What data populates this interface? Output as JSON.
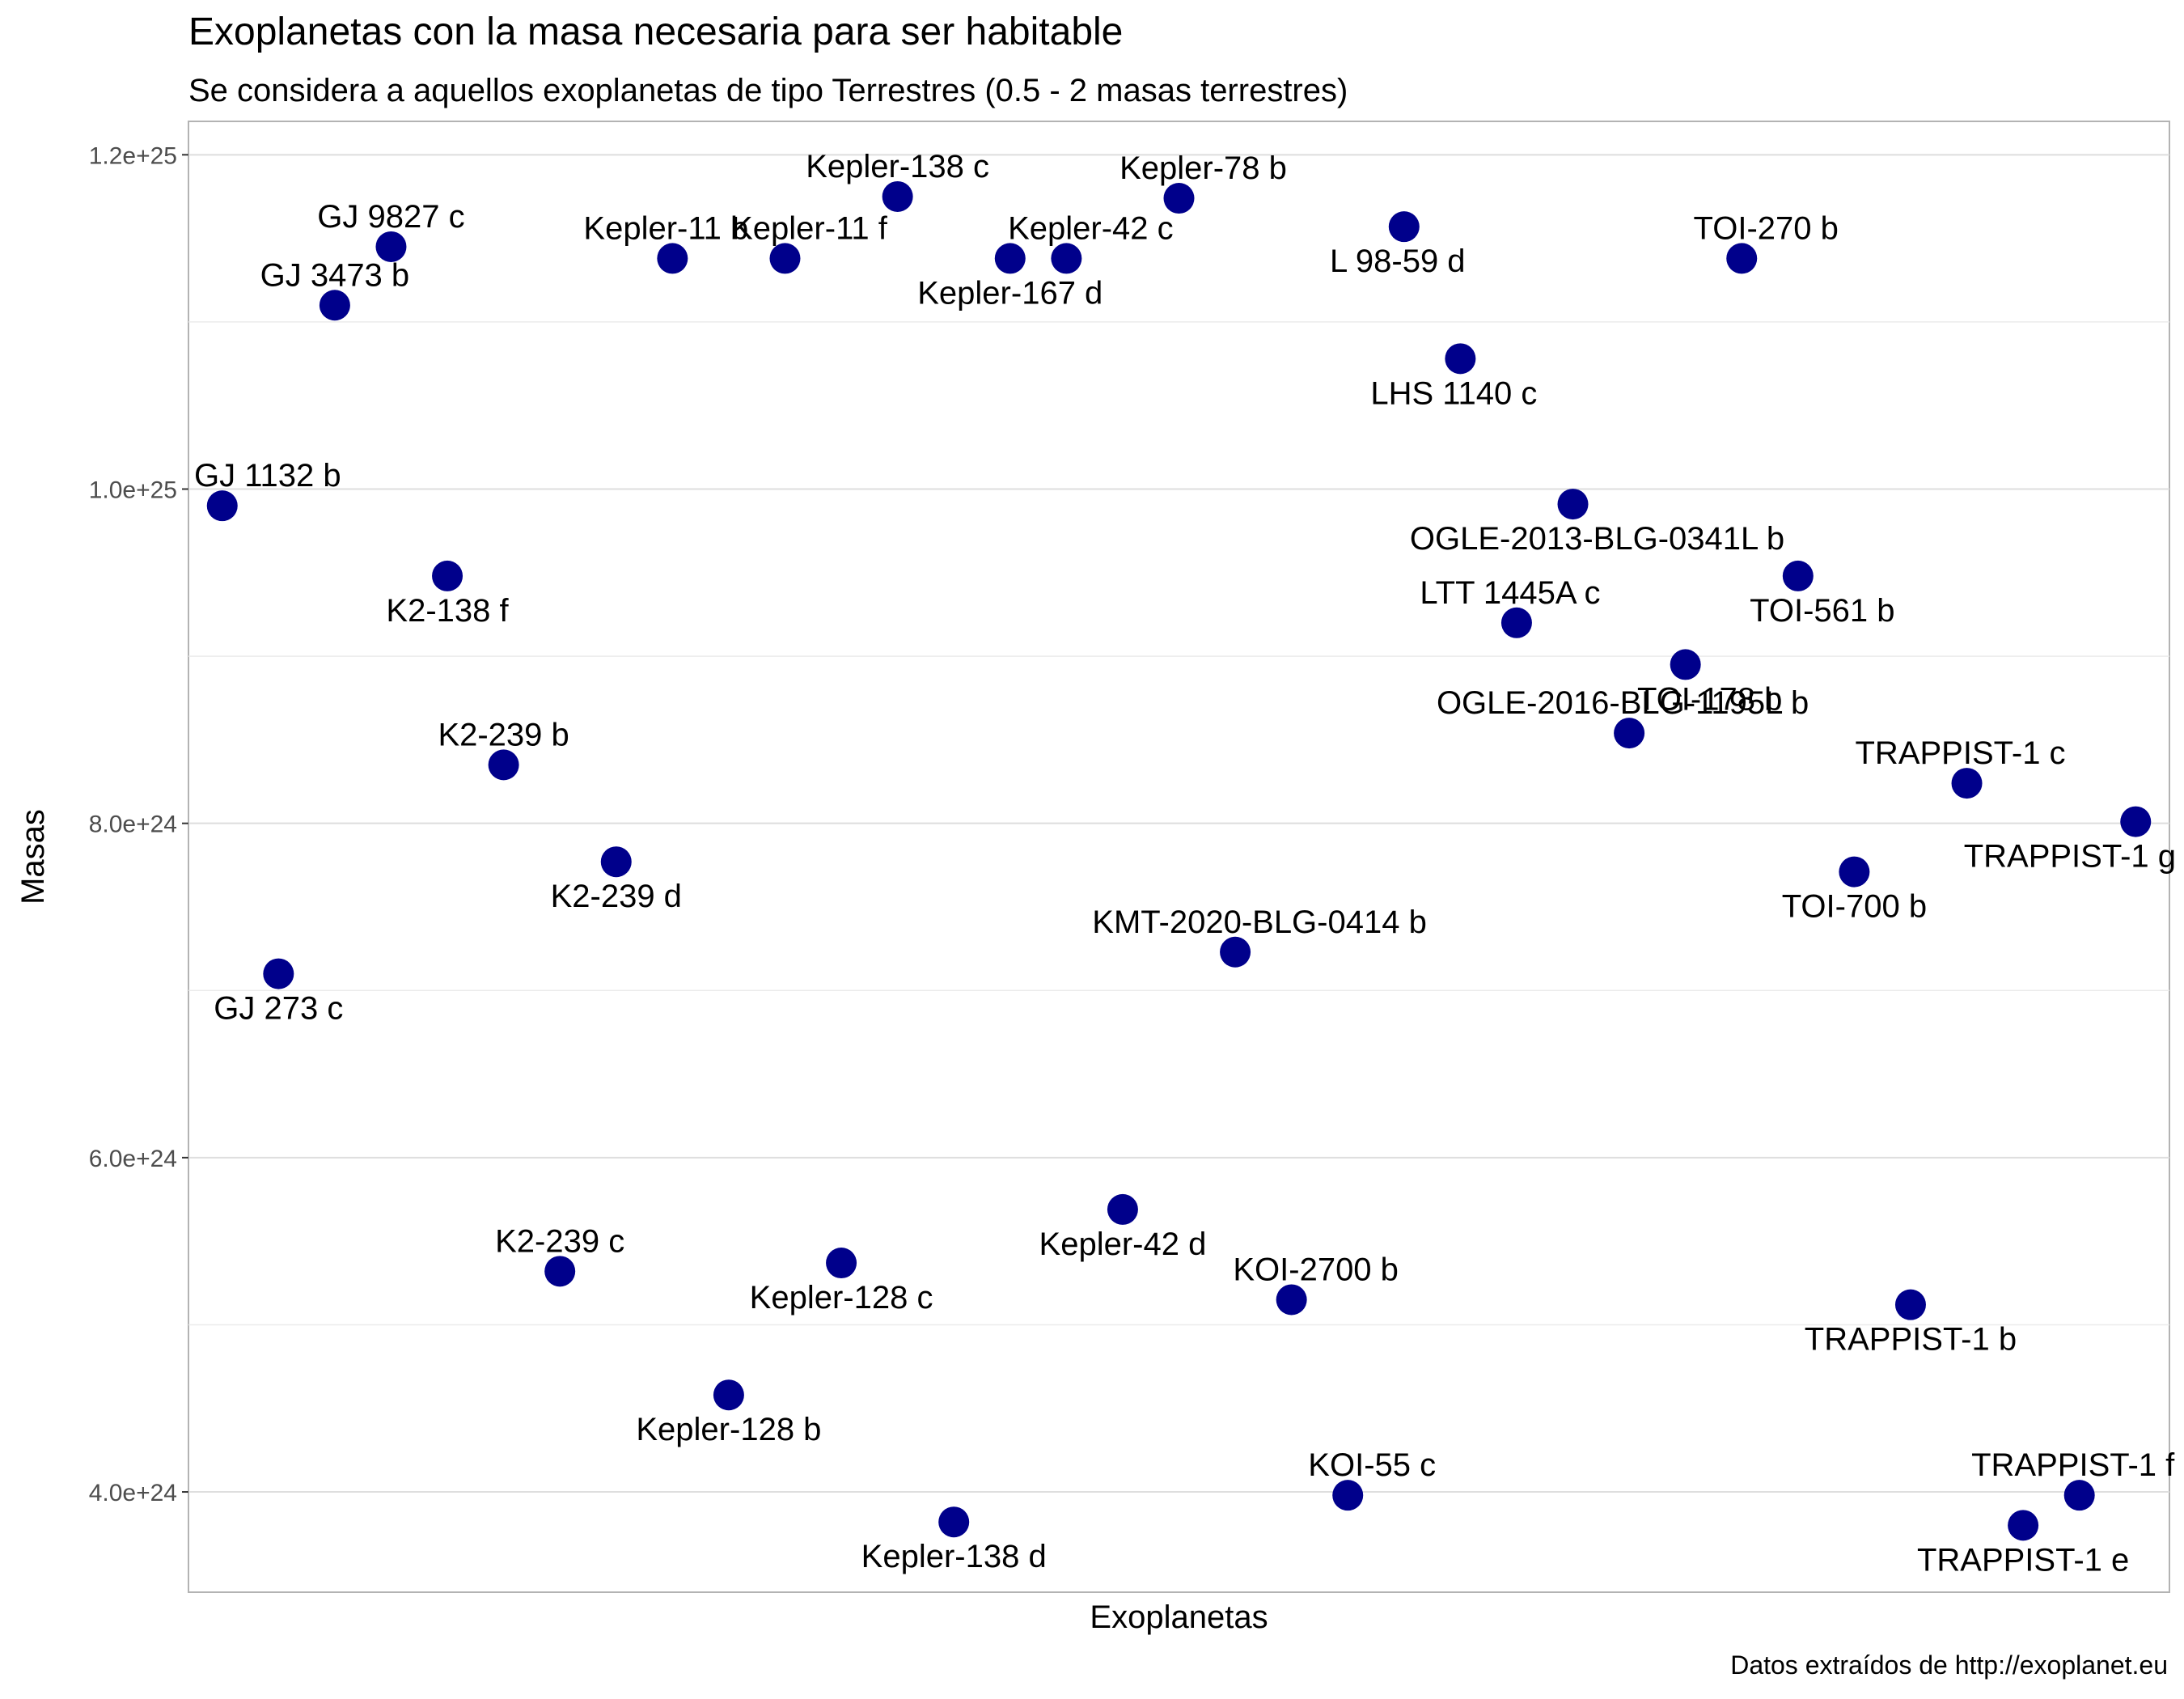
{
  "chart_data": {
    "type": "scatter",
    "title": "Exoplanetas con la masa necesaria para ser habitable",
    "subtitle": "Se considera a aquellos exoplanetas de tipo Terrestres (0.5 - 2 masas terrestres)",
    "caption": "Datos extraídos de http://exoplanet.eu",
    "xlabel": "Exoplanetas",
    "ylabel": "Masas",
    "ylim": [
      3.4e+24,
      1.22e+25
    ],
    "yticks": [
      {
        "value": 4e+24,
        "label": "4.0e+24"
      },
      {
        "value": 6e+24,
        "label": "6.0e+24"
      },
      {
        "value": 8e+24,
        "label": "8.0e+24"
      },
      {
        "value": 1e+25,
        "label": "1.0e+25"
      },
      {
        "value": 1.2e+25,
        "label": "1.2e+25"
      }
    ],
    "grid": true,
    "point_color": "#00008b",
    "points": [
      {
        "name": "GJ 1132 b",
        "y": 9.9e+24,
        "label_pos": "above"
      },
      {
        "name": "GJ 273 c",
        "y": 7.1e+24,
        "label_pos": "below"
      },
      {
        "name": "GJ 3473 b",
        "y": 1.11e+25,
        "label_pos": "above"
      },
      {
        "name": "GJ 9827 c",
        "y": 1.145e+25,
        "label_pos": "above"
      },
      {
        "name": "K2-138 f",
        "y": 9.48e+24,
        "label_pos": "below"
      },
      {
        "name": "K2-239 b",
        "y": 8.35e+24,
        "label_pos": "above"
      },
      {
        "name": "K2-239 c",
        "y": 5.32e+24,
        "label_pos": "above"
      },
      {
        "name": "K2-239 d",
        "y": 7.77e+24,
        "label_pos": "below"
      },
      {
        "name": "Kepler-11 b",
        "y": 1.138e+25,
        "label_pos": "above-left"
      },
      {
        "name": "Kepler-128 b",
        "y": 4.58e+24,
        "label_pos": "below"
      },
      {
        "name": "Kepler-11 f",
        "y": 1.138e+25,
        "label_pos": "above-right"
      },
      {
        "name": "Kepler-128 c",
        "y": 5.37e+24,
        "label_pos": "below"
      },
      {
        "name": "Kepler-138 c",
        "y": 1.175e+25,
        "label_pos": "above"
      },
      {
        "name": "Kepler-138 d",
        "y": 3.82e+24,
        "label_pos": "below"
      },
      {
        "name": "Kepler-167 d",
        "y": 1.138e+25,
        "label_pos": "below"
      },
      {
        "name": "Kepler-42 c",
        "y": 1.138e+25,
        "label_pos": "above-right"
      },
      {
        "name": "Kepler-42 d",
        "y": 5.69e+24,
        "label_pos": "below"
      },
      {
        "name": "Kepler-78 b",
        "y": 1.174e+25,
        "label_pos": "above-right"
      },
      {
        "name": "KMT-2020-BLG-0414 b",
        "y": 7.23e+24,
        "label_pos": "above-right"
      },
      {
        "name": "KOI-2700 b",
        "y": 5.15e+24,
        "label_pos": "above-right"
      },
      {
        "name": "KOI-55 c",
        "y": 3.98e+24,
        "label_pos": "above-right"
      },
      {
        "name": "L 98-59 d",
        "y": 1.157e+25,
        "label_pos": "below-left"
      },
      {
        "name": "LHS 1140 c",
        "y": 1.078e+25,
        "label_pos": "below-left"
      },
      {
        "name": "LTT 1445A c",
        "y": 9.2e+24,
        "label_pos": "above-left"
      },
      {
        "name": "OGLE-2013-BLG-0341L b",
        "y": 9.91e+24,
        "label_pos": "below-right"
      },
      {
        "name": "OGLE-2016-BLG-1195L b",
        "y": 8.54e+24,
        "label_pos": "above-left"
      },
      {
        "name": "TOI-178 b",
        "y": 8.95e+24,
        "label_pos": "below-right"
      },
      {
        "name": "TOI-270 b",
        "y": 1.138e+25,
        "label_pos": "above-right"
      },
      {
        "name": "TOI-561 b",
        "y": 9.48e+24,
        "label_pos": "below-right"
      },
      {
        "name": "TOI-700 b",
        "y": 7.71e+24,
        "label_pos": "below"
      },
      {
        "name": "TRAPPIST-1 b",
        "y": 5.12e+24,
        "label_pos": "below"
      },
      {
        "name": "TRAPPIST-1 c",
        "y": 8.24e+24,
        "label_pos": "above-left"
      },
      {
        "name": "TRAPPIST-1 e",
        "y": 3.8e+24,
        "label_pos": "below"
      },
      {
        "name": "TRAPPIST-1 f",
        "y": 3.98e+24,
        "label_pos": "above-left"
      },
      {
        "name": "TRAPPIST-1 g",
        "y": 8.01e+24,
        "label_pos": "below-left"
      }
    ]
  }
}
